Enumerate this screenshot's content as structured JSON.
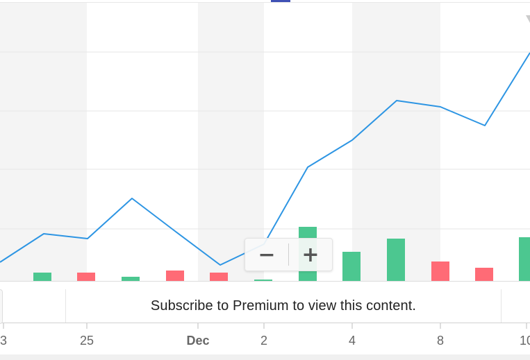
{
  "chart_data": {
    "type": "line",
    "x_ticks": [
      "3",
      "25",
      "Dec",
      "2",
      "4",
      "8",
      "10"
    ],
    "price_series": {
      "name": "",
      "color": "#2d95e3",
      "points": [
        {
          "x": 0,
          "y": 378
        },
        {
          "x": 63,
          "y": 337
        },
        {
          "x": 126,
          "y": 344
        },
        {
          "x": 190,
          "y": 286
        },
        {
          "x": 253,
          "y": 334
        },
        {
          "x": 317,
          "y": 382
        },
        {
          "x": 380,
          "y": 352
        },
        {
          "x": 443,
          "y": 241
        },
        {
          "x": 507,
          "y": 202
        },
        {
          "x": 571,
          "y": 145
        },
        {
          "x": 634,
          "y": 154
        },
        {
          "x": 698,
          "y": 181
        },
        {
          "x": 763,
          "y": 76
        }
      ]
    },
    "volume_series": {
      "up_color": "#4cc790",
      "down_color": "#ff6b76",
      "bars": [
        {
          "x": 61,
          "value": 12,
          "direction": "up"
        },
        {
          "x": 124,
          "value": 12,
          "direction": "down"
        },
        {
          "x": 188,
          "value": 6,
          "direction": "up"
        },
        {
          "x": 252,
          "value": 15,
          "direction": "down"
        },
        {
          "x": 315,
          "value": 12,
          "direction": "down"
        },
        {
          "x": 379,
          "value": 2,
          "direction": "up"
        },
        {
          "x": 443,
          "value": 78,
          "direction": "up"
        },
        {
          "x": 506,
          "value": 42,
          "direction": "up"
        },
        {
          "x": 570,
          "value": 61,
          "direction": "up"
        },
        {
          "x": 634,
          "value": 28,
          "direction": "down"
        },
        {
          "x": 697,
          "value": 19,
          "direction": "down"
        },
        {
          "x": 760,
          "value": 63,
          "direction": "up"
        }
      ]
    },
    "grid": true,
    "shaded_bands": true
  },
  "zoom": {
    "minus_label": "−",
    "plus_label": "+"
  },
  "premium_notice": "Subscribe to Premium to view this content.",
  "colors": {
    "band": "#f4f4f4",
    "grid": "#e6e6e6",
    "accent_marker": "#3f51b5"
  }
}
